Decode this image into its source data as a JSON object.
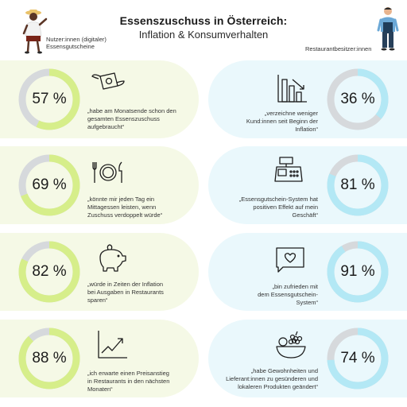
{
  "header": {
    "title": "Essenszuschuss in Österreich:",
    "subtitle": "Inflation & Konsumverhalten"
  },
  "labels": {
    "left": [
      "Nutzer:innen (digitaler)",
      "Essensgutscheine"
    ],
    "right": "Restaurantbesitzer:innen"
  },
  "colors": {
    "left_panel": "#f5f9e6",
    "right_panel": "#eaf8fc",
    "left_accent": "#d6ee8a",
    "right_accent": "#b3e8f5",
    "track": "#d6d9dc"
  },
  "left_stats": [
    {
      "pct": "57 %",
      "value": 57,
      "icon": "money-icon",
      "quote": [
        "„habe am Monatsende schon den",
        "gesamten Essenszuschuss",
        "aufgebraucht“"
      ]
    },
    {
      "pct": "69 %",
      "value": 69,
      "icon": "plate-cutlery-icon",
      "quote": [
        "„könnte mir jeden Tag ein",
        "Mittagessen leisten, wenn",
        "Zuschuss verdoppelt würde“"
      ]
    },
    {
      "pct": "82 %",
      "value": 82,
      "icon": "piggy-bank-icon",
      "quote": [
        "„würde in Zeiten der Inflation",
        "bei Ausgaben in Restaurants",
        "sparen“"
      ]
    },
    {
      "pct": "88 %",
      "value": 88,
      "icon": "rising-chart-icon",
      "quote": [
        "„ich erwarte einen Preisanstieg",
        "in Restaurants in den nächsten",
        "Monaten“"
      ]
    }
  ],
  "right_stats": [
    {
      "pct": "36 %",
      "value": 36,
      "icon": "declining-bars-icon",
      "quote": [
        "„verzeichne weniger",
        "Kund:innen seit Beginn der",
        "Inflation“"
      ]
    },
    {
      "pct": "81 %",
      "value": 81,
      "icon": "cash-register-icon",
      "quote": [
        "„Essensgutschein-System hat",
        "positiven Effekt auf mein",
        "Geschäft“"
      ]
    },
    {
      "pct": "91 %",
      "value": 91,
      "icon": "heart-message-icon",
      "quote": [
        "„bin zufrieden mit",
        "dem Essensgutschein-",
        "System“"
      ]
    },
    {
      "pct": "74 %",
      "value": 74,
      "icon": "fruit-bowl-icon",
      "quote": [
        "„habe Gewohnheiten und",
        "Lieferant:innen zu gesünderen und",
        "lokaleren Produkten geändert“"
      ]
    }
  ]
}
